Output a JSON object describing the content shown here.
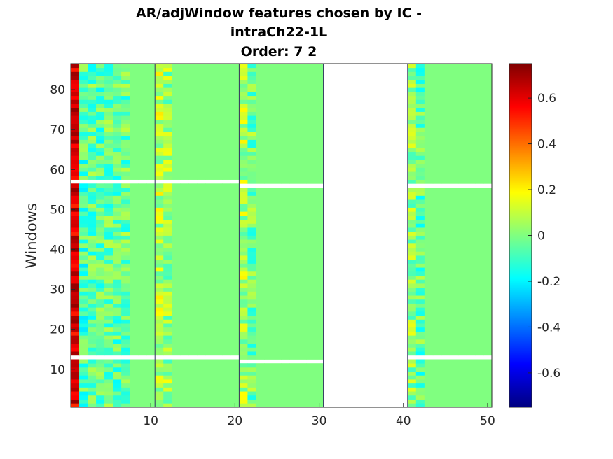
{
  "chart_data": {
    "type": "heatmap",
    "title_lines": [
      "AR/adjWindow features chosen by IC -",
      "intraCh22-1L",
      "Order: 7 2"
    ],
    "xlabel": "",
    "ylabel": "Windows",
    "xlim": [
      0.5,
      50.5
    ],
    "ylim": [
      0.5,
      86.5
    ],
    "xticks": [
      10,
      20,
      30,
      40,
      50
    ],
    "yticks": [
      10,
      20,
      30,
      40,
      50,
      60,
      70,
      80
    ],
    "colorbar": {
      "limits": [
        -0.75,
        0.75
      ],
      "ticks": [
        -0.6,
        -0.4,
        -0.2,
        0,
        0.2,
        0.4,
        0.6
      ],
      "tick_labels": [
        "-0.6",
        "-0.4",
        "-0.2",
        "0",
        "0.2",
        "0.4",
        "0.6"
      ],
      "colormap": "jet",
      "location": "right"
    },
    "feature_count": 50,
    "window_count": 86,
    "blocks": [
      {
        "features": [
          1,
          10
        ],
        "active_features": [
          1,
          7
        ],
        "missing_windows": [
          13,
          57
        ]
      },
      {
        "features": [
          11,
          20
        ],
        "active_features": [
          11,
          12
        ],
        "missing_windows": [
          13,
          57
        ]
      },
      {
        "features": [
          21,
          30
        ],
        "active_features": [
          21,
          22
        ],
        "missing_windows": [
          12,
          56
        ]
      },
      {
        "features": [
          31,
          40
        ],
        "active_features": [],
        "missing_windows": []
      },
      {
        "features": [
          41,
          50
        ],
        "active_features": [
          41,
          42
        ],
        "missing_windows": [
          13,
          56
        ]
      }
    ],
    "empty_feature_range": [
      31,
      40
    ],
    "feature_column_means": {
      "1": 0.62,
      "2": -0.08,
      "3": -0.05,
      "4": -0.06,
      "5": -0.04,
      "6": -0.05,
      "7": -0.04,
      "11": 0.08,
      "12": 0.04,
      "21": 0.07,
      "22": -0.02,
      "41": 0.03,
      "42": -0.05
    },
    "background_value": 0
  }
}
